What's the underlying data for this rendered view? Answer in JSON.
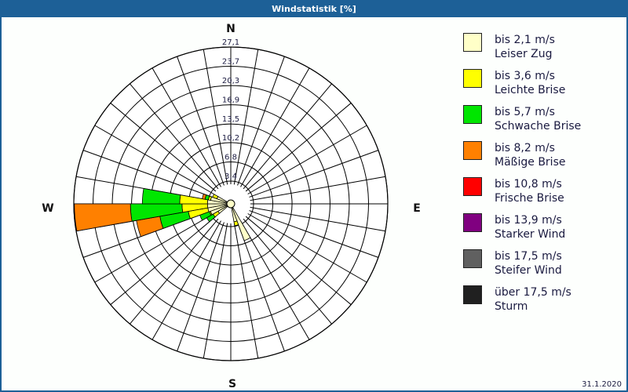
{
  "header": {
    "title": "Windstatistik [%]"
  },
  "footer": {
    "date": "31.1.2020"
  },
  "compass": {
    "n": "N",
    "e": "E",
    "s": "S",
    "w": "W"
  },
  "legend": [
    {
      "range": "bis 2,1 m/s",
      "name": "Leiser Zug",
      "color": "#ffffc8"
    },
    {
      "range": "bis 3,6 m/s",
      "name": "Leichte Brise",
      "color": "#ffff00"
    },
    {
      "range": "bis 5,7 m/s",
      "name": "Schwache Brise",
      "color": "#00e600"
    },
    {
      "range": "bis 8,2 m/s",
      "name": "Mäßige Brise",
      "color": "#ff8000"
    },
    {
      "range": "bis 10,8 m/s",
      "name": "Frische Brise",
      "color": "#ff0000"
    },
    {
      "range": "bis 13,9 m/s",
      "name": "Starker Wind",
      "color": "#800080"
    },
    {
      "range": "bis 17,5 m/s",
      "name": "Steifer Wind",
      "color": "#606060"
    },
    {
      "range": "über 17,5 m/s",
      "name": "Sturm",
      "color": "#202020"
    }
  ],
  "chart_data": {
    "type": "polar-stacked-bar",
    "title": "Windstatistik [%]",
    "unit": "%",
    "ring_labels": [
      "3,4",
      "6,8",
      "10,2",
      "13,5",
      "16,9",
      "20,3",
      "23,7",
      "27,1"
    ],
    "ring_values": [
      3.4,
      6.8,
      10.2,
      13.5,
      16.9,
      20.3,
      23.7,
      27.1
    ],
    "rlim": [
      0,
      27.1
    ],
    "sector_width_deg": 10,
    "series_names": [
      "bis 2,1 m/s",
      "bis 3,6 m/s",
      "bis 5,7 m/s",
      "bis 8,2 m/s",
      "bis 10,8 m/s",
      "bis 13,9 m/s",
      "bis 17,5 m/s",
      "über 17,5 m/s"
    ],
    "note": "cumulative percentages per direction sector (stacked outward), estimated from rings",
    "sectors": [
      {
        "dir": 155,
        "cumulative": [
          6.3
        ]
      },
      {
        "dir": 165,
        "cumulative": [
          2.6,
          3.3
        ]
      },
      {
        "dir": 235,
        "cumulative": [
          2.0,
          3.0,
          4.3
        ]
      },
      {
        "dir": 245,
        "cumulative": [
          3.2,
          3.4,
          5.2
        ]
      },
      {
        "dir": 255,
        "cumulative": [
          3.5,
          7.0,
          12.1,
          16.3
        ]
      },
      {
        "dir": 265,
        "cumulative": [
          3.5,
          8.0,
          17.1,
          27.0
        ]
      },
      {
        "dir": 275,
        "cumulative": [
          3.5,
          8.4,
          15.0
        ]
      },
      {
        "dir": 285,
        "cumulative": [
          3.0,
          3.4,
          4.0,
          4.5
        ]
      },
      {
        "dir": 295,
        "cumulative": [
          2.0,
          2.8
        ]
      }
    ]
  }
}
